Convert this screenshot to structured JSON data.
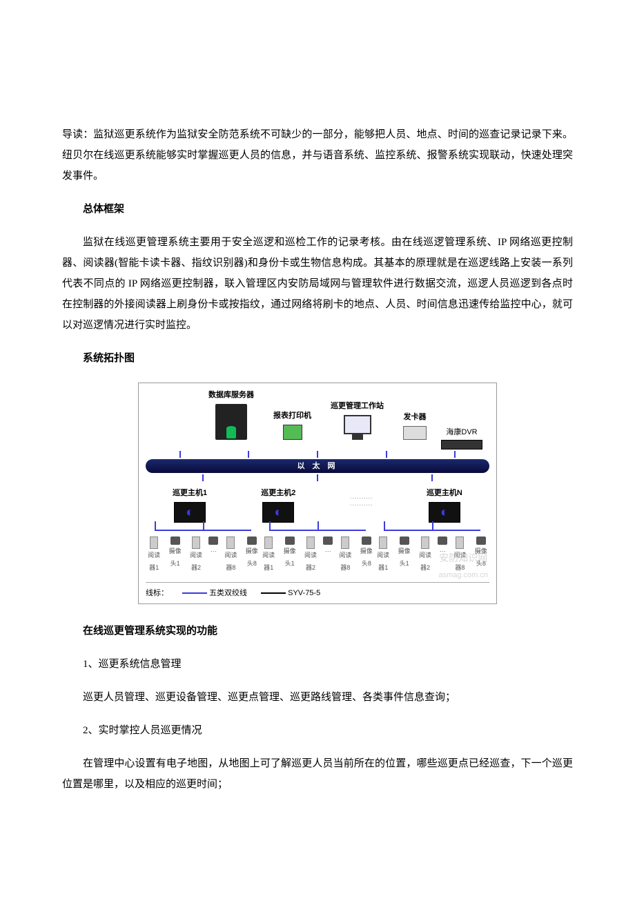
{
  "intro": "导读：监狱巡更系统作为监狱安全防范系统不可缺少的一部分，能够把人员、地点、时间的巡查记录记录下来。纽贝尔在线巡更系统能够实时掌握巡更人员的信息，并与语音系统、监控系统、报警系统实现联动，快速处理突发事件。",
  "heading1": "总体框架",
  "para1": "监狱在线巡更管理系统主要用于安全巡逻和巡检工作的记录考核。由在线巡逻管理系统、IP 网络巡更控制器、阅读器(智能卡读卡器、指纹识别器)和身份卡或生物信息构成。其基本的原理就是在巡逻线路上安装一系列代表不同点的 IP 网络巡更控制器，联入管理区内安防局域网与管理软件进行数据交流，巡逻人员巡逻到各点时在控制器的外接阅读器上刷身份卡或按指纹，通过网络将刷卡的地点、人员、时间信息迅速传给监控中心，就可以对巡逻情况进行实时监控。",
  "heading2": "系统拓扑图",
  "diagram": {
    "top": {
      "server": "数据库服务器",
      "server_db_hint": "数据库",
      "printer": "报表打印机",
      "workstation": "巡更管理工作站",
      "card_issuer": "发卡器",
      "dvr": "海康DVR"
    },
    "bus_label": "以 太 网",
    "hosts": [
      {
        "label": "巡更主机1"
      },
      {
        "label": "巡更主机2"
      },
      {
        "label": "巡更主机N"
      }
    ],
    "dots": "··········",
    "reader_prefix": "阅读器",
    "camera_prefix": "摄像头",
    "legend": {
      "title": "线标：",
      "cat5": "五类双绞线",
      "syv": "SYV-75-5"
    },
    "watermark_cn": "安防知识网",
    "watermark_en": "asmag.com.cn"
  },
  "heading3": "在线巡更管理系统实现的功能",
  "func1_label": "1、巡更系统信息管理",
  "func1_body": "巡更人员管理、巡更设备管理、巡更点管理、巡更路线管理、各类事件信息查询；",
  "func2_label": "2、实时掌控人员巡更情况",
  "func2_body": "在管理中心设置有电子地图，从地图上可了解巡更人员当前所在的位置，哪些巡更点已经巡查，下一个巡更位置是哪里，以及相应的巡更时间；"
}
